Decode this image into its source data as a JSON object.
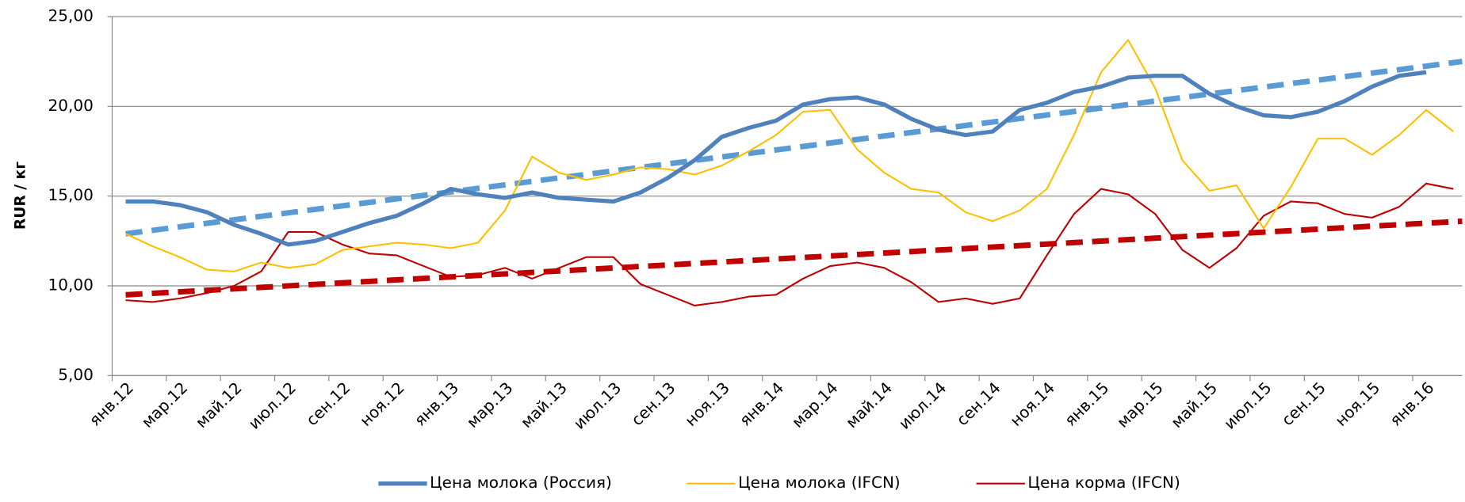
{
  "chart_data": {
    "type": "line",
    "y_label": "RUR / кг",
    "categories": [
      "янв.12",
      null,
      "мар.12",
      null,
      "май.12",
      null,
      "июл.12",
      null,
      "сен.12",
      null,
      "ноя.12",
      null,
      "янв.13",
      null,
      "мар.13",
      null,
      "май.13",
      null,
      "июл.13",
      null,
      "сен.13",
      null,
      "ноя.13",
      null,
      "янв.14",
      null,
      "мар.14",
      null,
      "май.14",
      null,
      "июл.14",
      null,
      "сен.14",
      null,
      "ноя.14",
      null,
      "янв.15",
      null,
      "мар.15",
      null,
      "май.15",
      null,
      "июл.15",
      null,
      "сен.15",
      null,
      "ноя.15",
      null,
      "янв.16",
      null
    ],
    "series": [
      {
        "name": "Цена молока (Россия)",
        "color": "#4f81bd",
        "width": 4.5,
        "values": [
          14.7,
          14.7,
          14.5,
          14.1,
          13.4,
          12.9,
          12.3,
          12.5,
          13.0,
          13.5,
          13.9,
          14.6,
          15.4,
          15.1,
          14.9,
          15.2,
          14.9,
          14.8,
          14.7,
          15.2,
          16.0,
          17.0,
          18.3,
          18.8,
          19.2,
          20.1,
          20.4,
          20.5,
          20.1,
          19.3,
          18.7,
          18.4,
          18.6,
          19.8,
          20.2,
          20.8,
          21.1,
          21.6,
          21.7,
          21.7,
          20.7,
          20.0,
          19.5,
          19.4,
          19.7,
          20.3,
          21.1,
          21.7,
          21.9,
          null
        ]
      },
      {
        "name": "Цена молока (IFCN)",
        "color": "#ffc000",
        "width": 1.8,
        "values": [
          12.9,
          12.2,
          11.6,
          10.9,
          10.8,
          11.3,
          11.0,
          11.2,
          12.0,
          12.2,
          12.4,
          12.3,
          12.1,
          12.4,
          14.2,
          17.2,
          16.3,
          15.9,
          16.2,
          16.6,
          16.5,
          16.2,
          16.7,
          17.5,
          18.4,
          19.7,
          19.8,
          17.6,
          16.3,
          15.4,
          15.2,
          14.1,
          13.6,
          14.2,
          15.4,
          18.4,
          21.9,
          23.7,
          21.0,
          17.0,
          15.3,
          15.6,
          13.2,
          15.5,
          18.2,
          18.2,
          17.3,
          18.4,
          19.8,
          18.6
        ]
      },
      {
        "name": "Цена корма (IFCN)",
        "color": "#c00000",
        "width": 1.8,
        "values": [
          9.2,
          9.1,
          9.3,
          9.6,
          10.0,
          10.8,
          13.0,
          13.0,
          12.3,
          11.8,
          11.7,
          11.1,
          10.5,
          10.6,
          11.0,
          10.4,
          11.0,
          11.6,
          11.6,
          10.1,
          9.5,
          8.9,
          9.1,
          9.4,
          9.5,
          10.4,
          11.1,
          11.3,
          11.0,
          10.2,
          9.1,
          9.3,
          9.0,
          9.3,
          11.7,
          14.0,
          15.4,
          15.1,
          14.0,
          12.0,
          11.0,
          12.1,
          13.9,
          14.7,
          14.6,
          14.0,
          13.8,
          14.4,
          15.7,
          15.4
        ]
      }
    ],
    "trendlines": [
      {
        "color": "#5b9bd5",
        "values": [
          12.9,
          22.5
        ]
      },
      {
        "color": "#c00000",
        "values": [
          9.5,
          13.6
        ]
      }
    ],
    "ylim": [
      5,
      25
    ],
    "yticks": [
      {
        "value": 5,
        "label": "5,00"
      },
      {
        "value": 10,
        "label": "10,00"
      },
      {
        "value": 15,
        "label": "15,00"
      },
      {
        "value": 20,
        "label": "20,00"
      },
      {
        "value": 25,
        "label": "25,00"
      }
    ],
    "grid": true
  }
}
